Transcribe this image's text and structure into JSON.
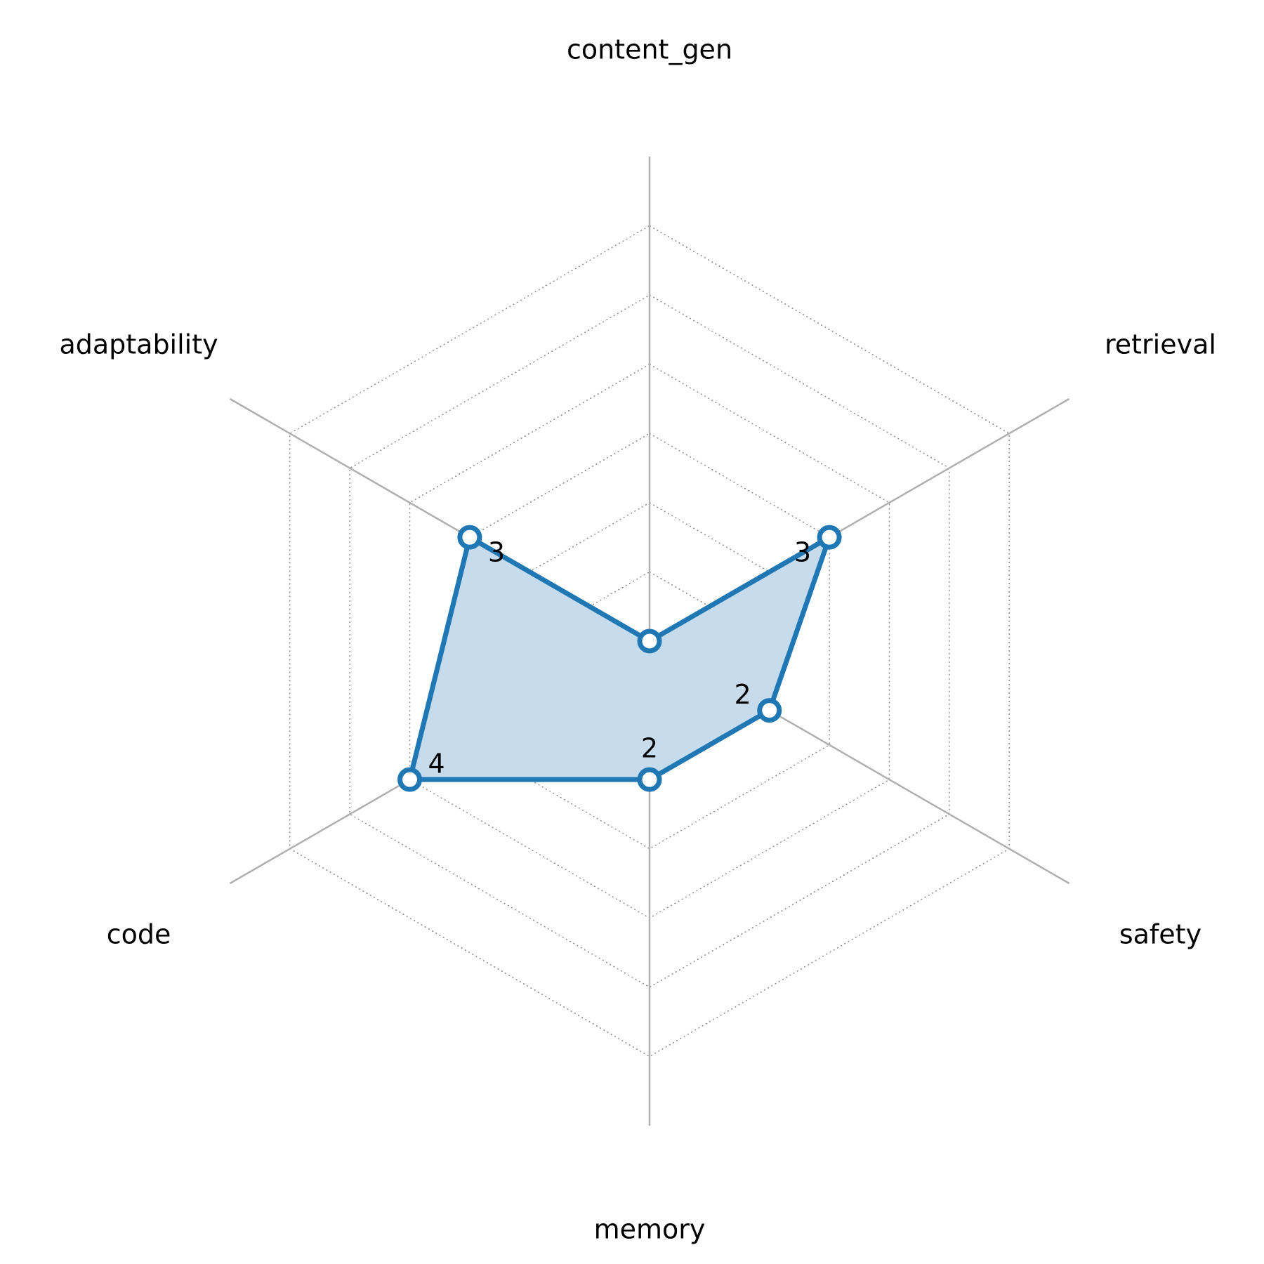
{
  "chart_data": {
    "type": "radar",
    "axes": [
      "content_gen",
      "retrieval",
      "safety",
      "memory",
      "code",
      "adaptability"
    ],
    "values": [
      0,
      3,
      2,
      2,
      4,
      3
    ],
    "value_labels": [
      "",
      "3",
      "2",
      "2",
      "4",
      "3"
    ],
    "rmax": 7,
    "grid_levels": [
      1,
      2,
      3,
      4,
      5,
      6
    ],
    "grid": true,
    "colors": {
      "series": "#1f77b4",
      "fill": "#c6dbec",
      "axis_line": "#b0b0b0",
      "grid_line": "#8c8c8c",
      "marker_fill": "#ffffff"
    }
  }
}
